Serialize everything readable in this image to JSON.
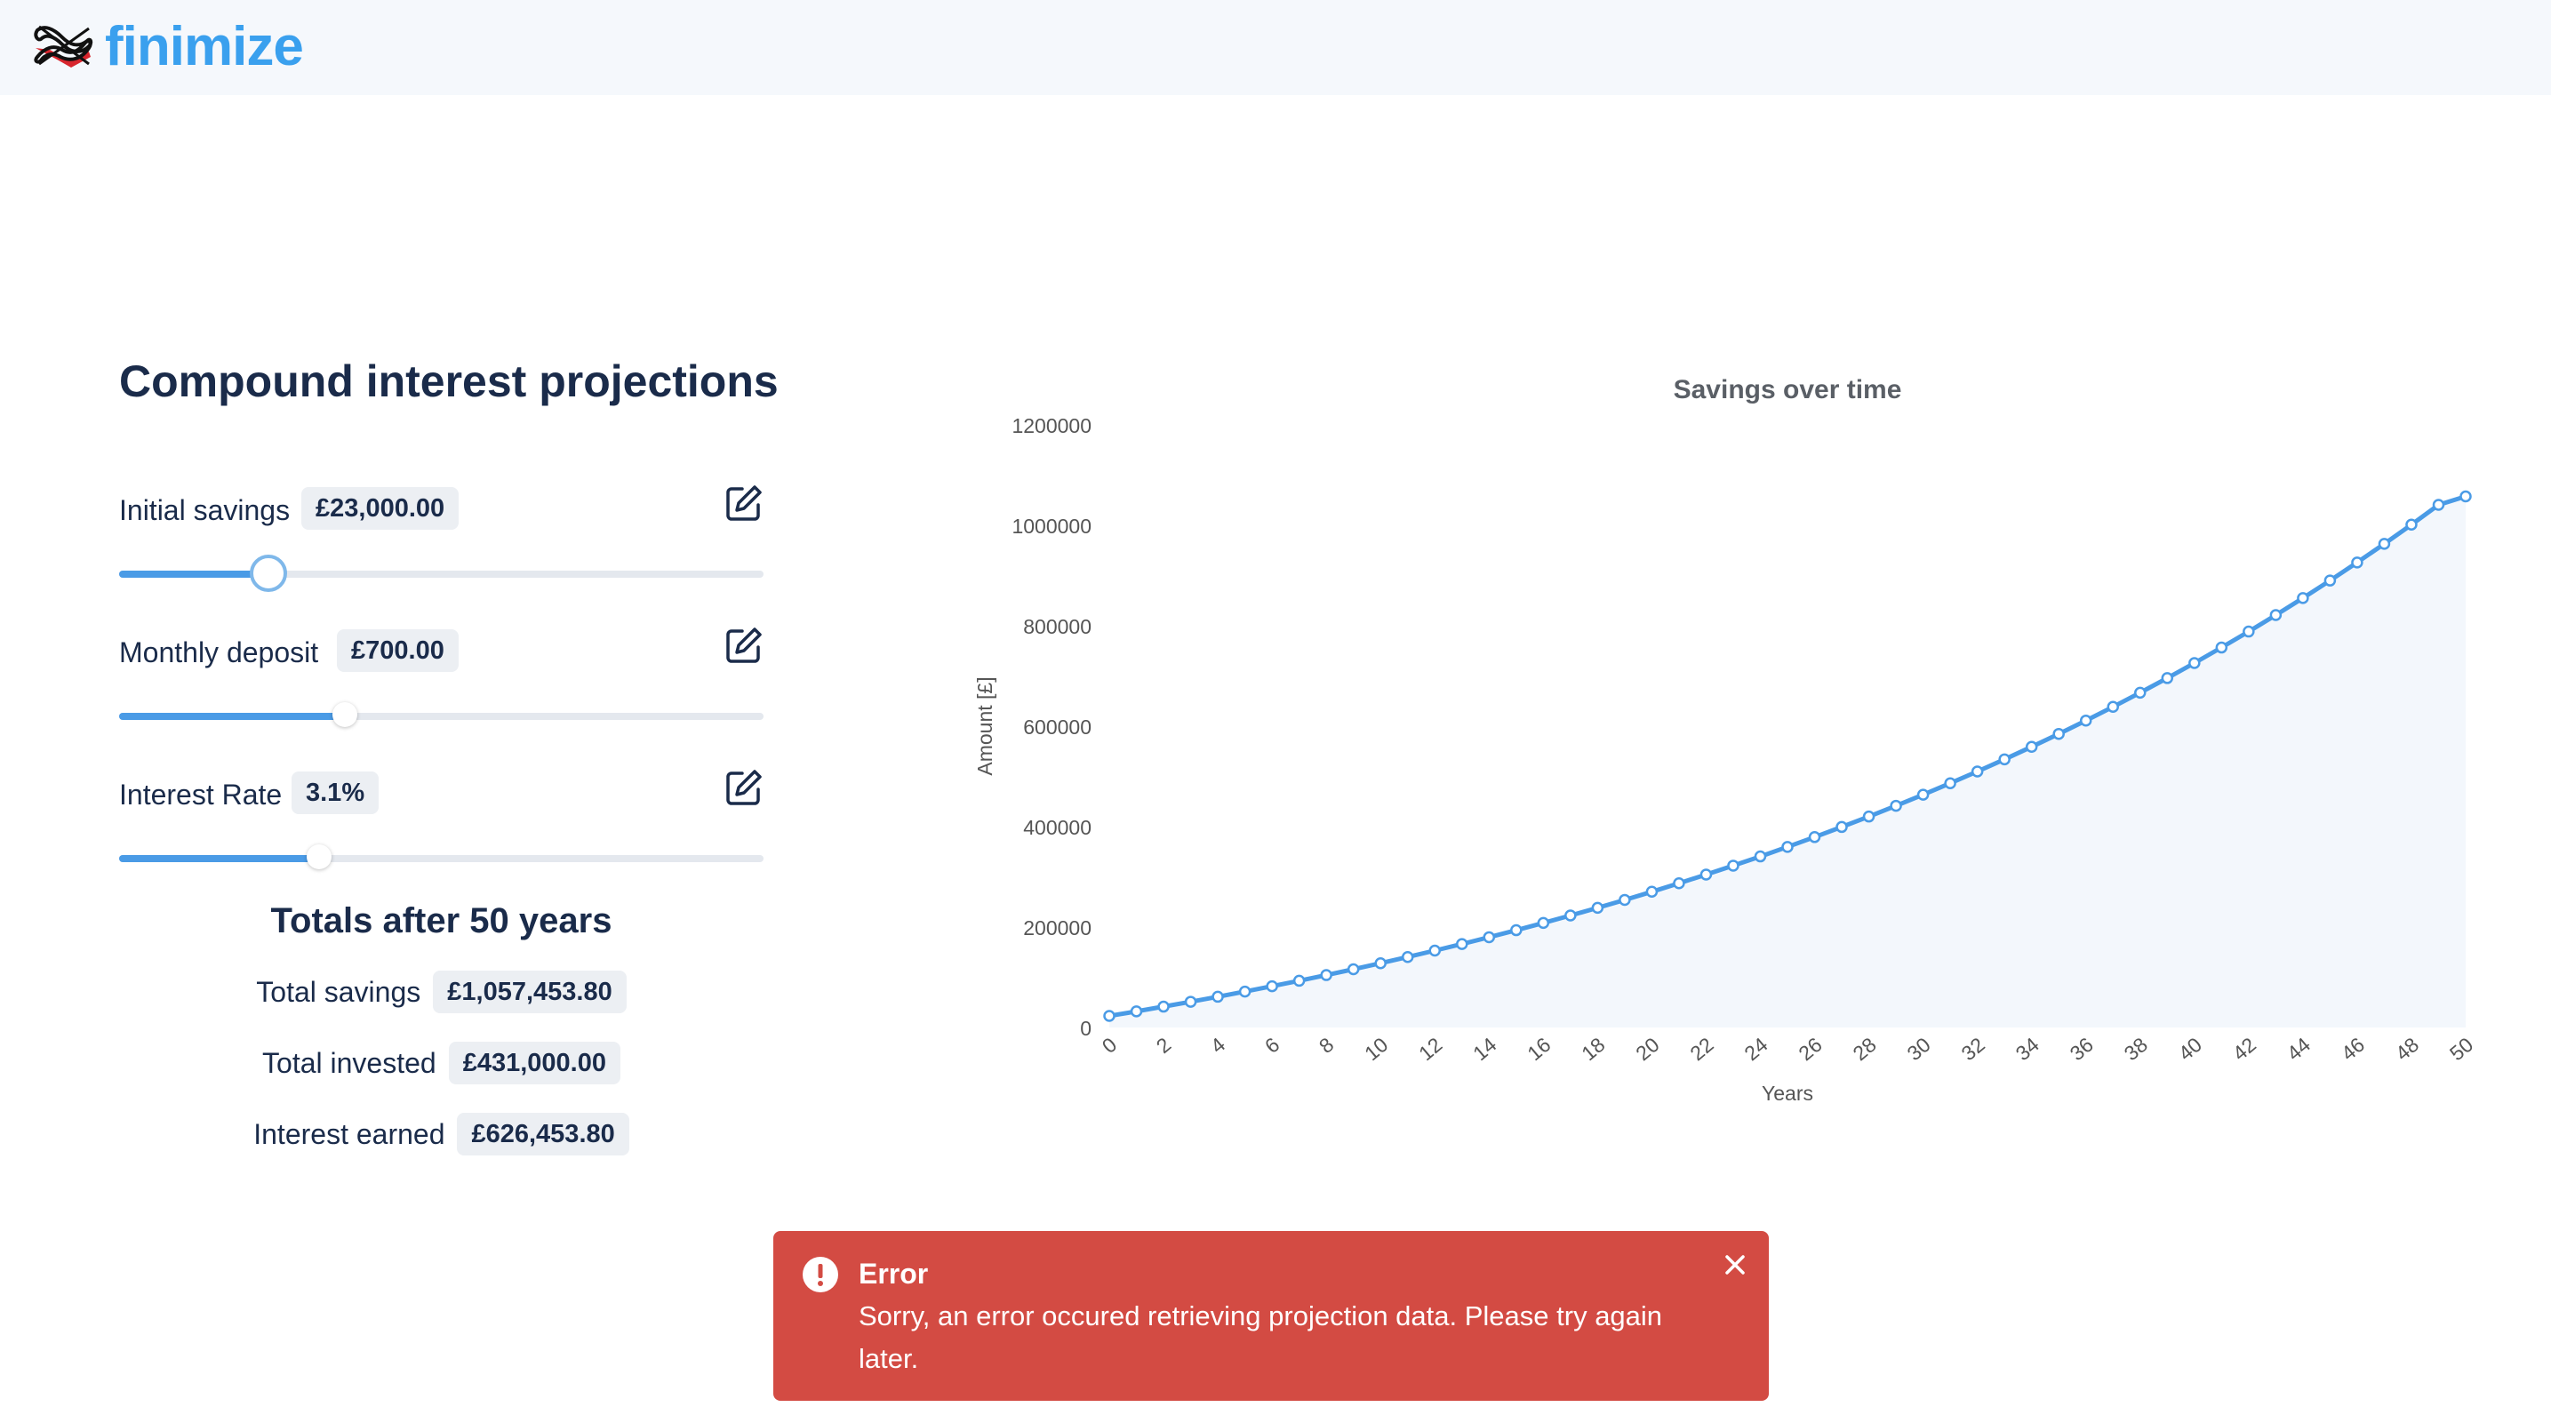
{
  "header": {
    "logo_text": "finimize"
  },
  "page": {
    "title": "Compound interest projections"
  },
  "controls": [
    {
      "label": "Initial savings",
      "value": "£23,000.00",
      "fill_fraction": 0.23
    },
    {
      "label": "Monthly deposit",
      "value": "£700.00",
      "fill_fraction": 0.35
    },
    {
      "label": "Interest Rate",
      "value": "3.1%",
      "fill_fraction": 0.31
    }
  ],
  "totals": {
    "title": "Totals after 50 years",
    "rows": [
      {
        "label": "Total savings",
        "value": "£1,057,453.80"
      },
      {
        "label": "Total invested",
        "value": "£431,000.00"
      },
      {
        "label": "Interest earned",
        "value": "£626,453.80"
      }
    ]
  },
  "chart_data": {
    "type": "area",
    "title": "Savings over time",
    "xlabel": "Years",
    "ylabel": "Amount [£]",
    "xlim": [
      0,
      50
    ],
    "ylim": [
      0,
      1200000
    ],
    "x_ticks": [
      0,
      2,
      4,
      6,
      8,
      10,
      12,
      14,
      16,
      18,
      20,
      22,
      24,
      26,
      28,
      30,
      32,
      34,
      36,
      38,
      40,
      42,
      44,
      46,
      48,
      50
    ],
    "y_ticks": [
      0,
      200000,
      400000,
      600000,
      800000,
      1000000,
      1200000
    ],
    "colors": {
      "line": "#4a9be6",
      "fill": "#f3f7fc"
    },
    "series": [
      {
        "x": [
          0,
          1,
          2,
          3,
          4,
          5,
          6,
          7,
          8,
          9,
          10,
          11,
          12,
          13,
          14,
          15,
          16,
          17,
          18,
          19,
          20,
          21,
          22,
          23,
          24,
          25,
          26,
          27,
          28,
          29,
          30,
          31,
          32,
          33,
          34,
          35,
          36,
          37,
          38,
          39,
          40,
          41,
          42,
          43,
          44,
          45,
          46,
          47,
          48,
          49,
          50
        ],
        "values": [
          23000,
          32113,
          41508,
          51194,
          61181,
          71477,
          82092,
          93036,
          104319,
          115951,
          127944,
          140308,
          153055,
          166197,
          179747,
          193716,
          208118,
          222967,
          238275,
          254058,
          270330,
          287106,
          304402,
          322234,
          340618,
          359573,
          379114,
          399262,
          420033,
          441449,
          463528,
          486291,
          509760,
          533955,
          558901,
          584619,
          611134,
          638470,
          666654,
          695710,
          725667,
          756551,
          788393,
          821220,
          855065,
          889958,
          925933,
          963021,
          1001259,
          1040681,
          1057454
        ]
      }
    ]
  },
  "toast": {
    "title": "Error",
    "message": "Sorry, an error occured retrieving projection data. Please try again later."
  }
}
